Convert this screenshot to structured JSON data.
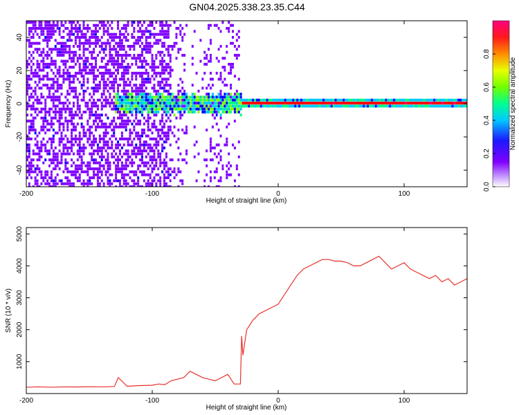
{
  "chart_data": [
    {
      "type": "heatmap",
      "title": "GN04.2025.338.23.35.C44",
      "xlabel": "Height of straight line (km)",
      "ylabel": "Frequency (Hz)",
      "xlim": [
        -200,
        150
      ],
      "ylim": [
        -50,
        50
      ],
      "xticks": [
        -200,
        -100,
        0,
        100
      ],
      "yticks": [
        -40,
        -20,
        0,
        20,
        40
      ],
      "grid": false,
      "colorbar": {
        "label": "Normalized spectral amplitude",
        "ticks": [
          0.0,
          0.2,
          0.4,
          0.6,
          0.8
        ],
        "range": [
          0,
          1
        ],
        "colormap": "rainbow",
        "colors": [
          "#ffffff",
          "#8000ff",
          "#0000ff",
          "#00c8ff",
          "#00ff80",
          "#80ff00",
          "#ffff00",
          "#ff8000",
          "#ff0000",
          "#ff0080"
        ]
      },
      "description_regions": [
        {
          "x_from": -200,
          "x_to": -85,
          "pattern": "scattered noise",
          "amplitude": 0.1
        },
        {
          "x_from": -85,
          "x_to": -32,
          "pattern": "sparse noise",
          "amplitude": 0.05
        },
        {
          "x_from": -130,
          "x_to": -30,
          "pattern": "signal band near 0 Hz",
          "amplitude": 0.5
        },
        {
          "x_from": -30,
          "x_to": 150,
          "pattern": "strong narrow band at ~0 Hz",
          "amplitude": 0.95
        }
      ]
    },
    {
      "type": "line",
      "xlabel": "Height of straight line (km)",
      "ylabel": "SNR (10 * v/v)",
      "xlim": [
        -200,
        150
      ],
      "ylim": [
        0,
        5200
      ],
      "xticks": [
        -200,
        -100,
        0,
        100
      ],
      "yticks": [
        1000,
        2000,
        3000,
        4000,
        5000
      ],
      "grid": false,
      "color": "#e8302a",
      "series": [
        {
          "x": [
            -200,
            -190,
            -180,
            -170,
            -160,
            -150,
            -140,
            -130,
            -127,
            -120,
            -110,
            -100,
            -95,
            -90,
            -85,
            -80,
            -75,
            -70,
            -65,
            -60,
            -55,
            -50,
            -45,
            -40,
            -35,
            -30,
            -29,
            -28,
            -25,
            -20,
            -15,
            -10,
            -5,
            0,
            5,
            10,
            15,
            20,
            25,
            30,
            35,
            40,
            45,
            50,
            55,
            60,
            65,
            70,
            75,
            80,
            85,
            90,
            95,
            100,
            105,
            110,
            115,
            120,
            125,
            130,
            135,
            140,
            145,
            150
          ],
          "y": [
            200,
            210,
            200,
            210,
            205,
            215,
            210,
            220,
            500,
            230,
            250,
            260,
            300,
            280,
            400,
            450,
            500,
            700,
            600,
            500,
            450,
            400,
            500,
            600,
            300,
            300,
            1800,
            1200,
            2000,
            2300,
            2500,
            2600,
            2700,
            2800,
            3100,
            3400,
            3700,
            3900,
            4000,
            4100,
            4200,
            4200,
            4150,
            4150,
            4100,
            4000,
            4000,
            4100,
            4200,
            4300,
            4100,
            3900,
            4000,
            4100,
            3900,
            3800,
            3700,
            3600,
            3700,
            3500,
            3600,
            3400,
            3500,
            3600
          ]
        }
      ]
    }
  ]
}
